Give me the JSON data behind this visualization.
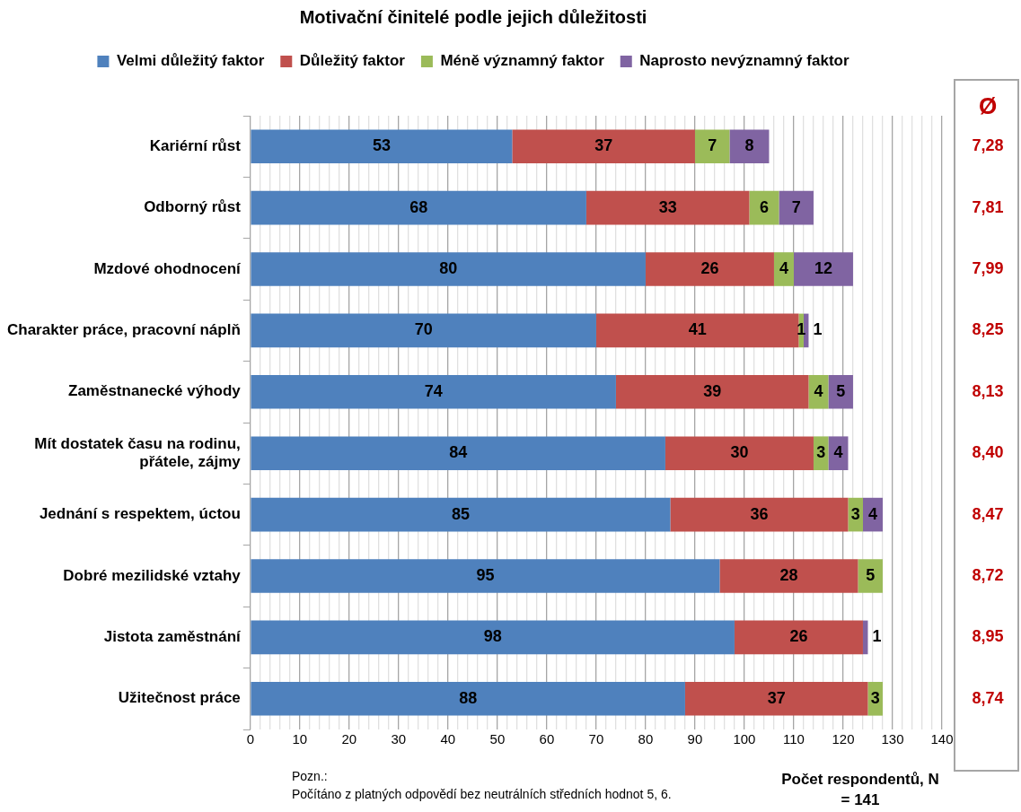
{
  "chart_data": {
    "type": "bar",
    "orientation": "horizontal",
    "stacked": true,
    "title": "Motivační činitelé podle jejich důležitosti",
    "xlabel": "Počet respondentů, N = 141",
    "categories": [
      "Kariérní růst",
      "Odborný růst",
      "Mzdové ohodnocení",
      "Charakter práce, pracovní náplň",
      "Zaměstnanecké výhody",
      "Mít dostatek času na rodinu, přátele, zájmy",
      "Jednání s respektem, úctou",
      "Dobré mezilidské vztahy",
      "Jistota zaměstnání",
      "Užitečnost práce"
    ],
    "series": [
      {
        "name": "Velmi důležitý faktor",
        "color": "#4f81bd",
        "values": [
          53,
          68,
          80,
          70,
          74,
          84,
          85,
          95,
          98,
          88
        ]
      },
      {
        "name": "Důležitý faktor",
        "color": "#c0504d",
        "values": [
          37,
          33,
          26,
          41,
          39,
          30,
          36,
          28,
          26,
          37
        ]
      },
      {
        "name": "Méně významný faktor",
        "color": "#9bbb59",
        "values": [
          7,
          6,
          4,
          1,
          4,
          3,
          3,
          5,
          null,
          3
        ]
      },
      {
        "name": "Naprosto nevýznamný faktor",
        "color": "#8064a2",
        "values": [
          8,
          7,
          12,
          1,
          5,
          4,
          4,
          null,
          1,
          null
        ]
      }
    ],
    "xlim": [
      0,
      140
    ],
    "xticks": [
      0,
      {
        "value": 2,
        "label": null
      },
      {
        "value": 4,
        "label": null
      },
      {
        "value": 6,
        "label": null
      },
      {
        "value": 8,
        "label": null
      },
      10,
      {
        "value": 12,
        "label": null
      },
      {
        "value": 14,
        "label": null
      },
      {
        "value": 16,
        "label": null
      },
      {
        "value": 18,
        "label": null
      },
      20,
      {
        "value": 22,
        "label": null
      },
      {
        "value": 24,
        "label": null
      },
      {
        "value": 26,
        "label": null
      },
      {
        "value": 28,
        "label": null
      },
      30,
      {
        "value": 32,
        "label": null
      },
      {
        "value": 34,
        "label": null
      },
      {
        "value": 36,
        "label": null
      },
      {
        "value": 38,
        "label": null
      },
      40,
      {
        "value": 42,
        "label": null
      },
      {
        "value": 44,
        "label": null
      },
      {
        "value": 46,
        "label": null
      },
      {
        "value": 48,
        "label": null
      },
      50,
      {
        "value": 52,
        "label": null
      },
      {
        "value": 54,
        "label": null
      },
      {
        "value": 56,
        "label": null
      },
      {
        "value": 58,
        "label": null
      },
      60,
      {
        "value": 62,
        "label": null
      },
      {
        "value": 64,
        "label": null
      },
      {
        "value": 66,
        "label": null
      },
      {
        "value": 68,
        "label": null
      },
      70,
      {
        "value": 72,
        "label": null
      },
      {
        "value": 74,
        "label": null
      },
      {
        "value": 76,
        "label": null
      },
      {
        "value": 78,
        "label": null
      },
      80,
      {
        "value": 82,
        "label": null
      },
      {
        "value": 84,
        "label": null
      },
      {
        "value": 86,
        "label": null
      },
      {
        "value": 88,
        "label": null
      },
      90,
      {
        "value": 92,
        "label": null
      },
      {
        "value": 94,
        "label": null
      },
      {
        "value": 96,
        "label": null
      },
      {
        "value": 98,
        "label": null
      },
      100,
      {
        "value": 102,
        "label": null
      },
      {
        "value": 104,
        "label": null
      },
      {
        "value": 106,
        "label": null
      },
      {
        "value": 108,
        "label": null
      },
      110,
      {
        "value": 112,
        "label": null
      },
      {
        "value": 114,
        "label": null
      },
      {
        "value": 116,
        "label": null
      },
      {
        "value": 118,
        "label": null
      },
      120,
      {
        "value": 122,
        "label": null
      },
      {
        "value": 124,
        "label": null
      },
      {
        "value": 126,
        "label": null
      },
      {
        "value": 128,
        "label": null
      },
      130,
      {
        "value": 132,
        "label": null
      },
      {
        "value": 134,
        "label": null
      },
      {
        "value": 136,
        "label": null
      },
      {
        "value": 138,
        "label": null
      },
      140
    ],
    "grid": "x",
    "legend": "top",
    "data_labels": true,
    "annotations": [
      "Ø",
      "7,28",
      "7,81",
      "7,99",
      "8,25",
      "8,13",
      "8,40",
      "8,47",
      "8,72",
      "8,95",
      "8,74",
      "Pozn.:",
      "Počítáno z platných odpovědí bez neutrálních středních hodnot  5, 6."
    ]
  }
}
